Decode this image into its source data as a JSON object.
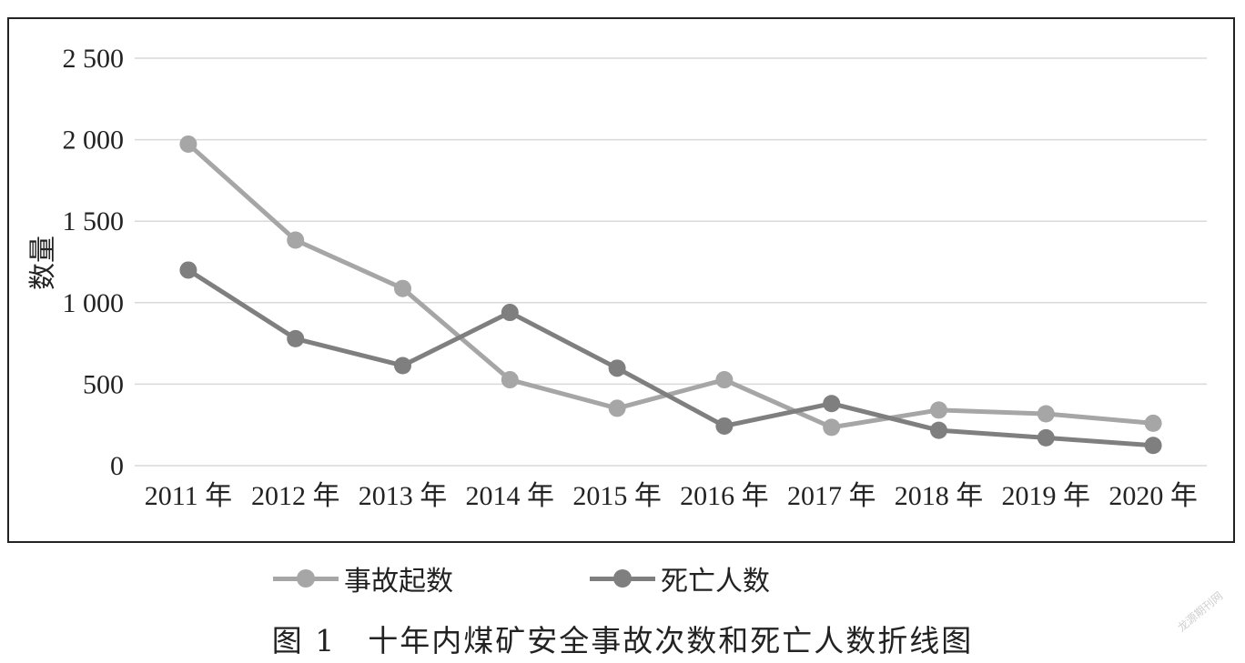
{
  "chart_data": {
    "type": "line",
    "title": "",
    "ylabel": "数量",
    "xlabel": "",
    "categories": [
      "2011 年",
      "2012 年",
      "2013 年",
      "2014 年",
      "2015 年",
      "2016 年",
      "2017 年",
      "2018 年",
      "2019 年",
      "2020 年"
    ],
    "yticks": [
      "0",
      "500",
      "1 000",
      "1 500",
      "2 000",
      "2 500"
    ],
    "ylim": [
      0,
      2500
    ],
    "grid": true,
    "legend_position": "bottom",
    "series": [
      {
        "name": "事故起数",
        "color": "#a6a6a6",
        "values": [
          1973,
          1384,
          1087,
          527,
          352,
          527,
          235,
          341,
          318,
          260
        ]
      },
      {
        "name": "死亡人数",
        "color": "#7f7f7f",
        "values": [
          1200,
          779,
          614,
          940,
          598,
          243,
          381,
          217,
          171,
          124
        ]
      }
    ]
  },
  "caption": "图 1　十年内煤矿安全事故次数和死亡人数折线图",
  "watermark": "龙源期刊网"
}
